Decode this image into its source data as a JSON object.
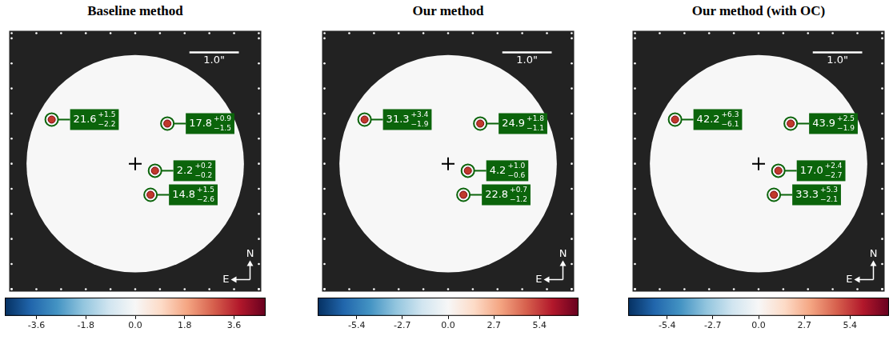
{
  "chart_data": [
    {
      "type": "image",
      "title": "Baseline method",
      "xlim": [
        -2.55,
        2.55
      ],
      "ylim": [
        -2.55,
        2.65
      ],
      "xticks": [
        -2.5,
        -2.0,
        -1.5,
        -1.0,
        -0.5,
        0,
        0.5,
        1.0,
        1.5,
        2.0,
        2.5
      ],
      "yticks": [
        -2.5,
        -2.0,
        -1.5,
        -1.0,
        -0.5,
        0,
        0.5,
        1.0,
        1.5,
        2.0,
        2.5
      ],
      "tick_labels": false,
      "mask_radius": 2.2,
      "star": {
        "x": 0,
        "y": 0
      },
      "scale_bar": {
        "length": 1.0,
        "label": "1.0\""
      },
      "compass": {
        "north": "N",
        "east": "E"
      },
      "sources": [
        {
          "x": -1.69,
          "y": 0.88,
          "value": 21.6,
          "error_plus": 1.5,
          "error_minus": 2.2,
          "value_labels": [
            "21.6",
            "+1.5",
            "−2.2"
          ]
        },
        {
          "x": 0.65,
          "y": 0.8,
          "value": 17.8,
          "error_plus": 0.9,
          "error_minus": 1.5,
          "value_labels": [
            "17.8",
            "+0.9",
            "−1.5"
          ]
        },
        {
          "x": 0.4,
          "y": -0.14,
          "value": 2.2,
          "error_plus": 0.2,
          "error_minus": 0.2,
          "value_labels": [
            "2.2",
            "+0.2",
            "−0.2"
          ]
        },
        {
          "x": 0.31,
          "y": -0.62,
          "value": 14.8,
          "error_plus": 1.5,
          "error_minus": 2.6,
          "value_labels": [
            "14.8",
            "+1.5",
            "−2.6"
          ]
        }
      ],
      "colorbar": {
        "range": [
          -4.75,
          4.75
        ],
        "ticks": [
          -3.6,
          -1.8,
          {
            "value": 0,
            "label": "0.0"
          },
          1.8,
          3.6
        ]
      }
    },
    {
      "type": "image",
      "title": "Our method",
      "xlim": [
        -2.55,
        2.55
      ],
      "ylim": [
        -2.55,
        2.65
      ],
      "xticks": [
        -2.5,
        -2.0,
        -1.5,
        -1.0,
        -0.5,
        0,
        0.5,
        1.0,
        1.5,
        2.0,
        2.5
      ],
      "yticks": [
        -2.5,
        -2.0,
        -1.5,
        -1.0,
        -0.5,
        0,
        0.5,
        1.0,
        1.5,
        2.0,
        2.5
      ],
      "tick_labels": false,
      "mask_radius": 2.2,
      "star": {
        "x": 0,
        "y": 0
      },
      "scale_bar": {
        "length": 1.0,
        "label": "1.0\""
      },
      "compass": {
        "north": "N",
        "east": "E"
      },
      "sources": [
        {
          "x": -1.69,
          "y": 0.88,
          "value": 31.3,
          "error_plus": 3.4,
          "error_minus": 1.9,
          "value_labels": [
            "31.3",
            "+3.4",
            "−1.9"
          ]
        },
        {
          "x": 0.65,
          "y": 0.8,
          "value": 24.9,
          "error_plus": 1.8,
          "error_minus": 1.1,
          "value_labels": [
            "24.9",
            "+1.8",
            "−1.1"
          ]
        },
        {
          "x": 0.4,
          "y": -0.14,
          "value": 4.2,
          "error_plus": 1.0,
          "error_minus": 0.6,
          "value_labels": [
            "4.2",
            "+1.0",
            "−0.6"
          ]
        },
        {
          "x": 0.31,
          "y": -0.62,
          "value": 22.8,
          "error_plus": 0.7,
          "error_minus": 1.2,
          "value_labels": [
            "22.8",
            "+0.7",
            "−1.2"
          ]
        }
      ],
      "colorbar": {
        "range": [
          -7.7,
          7.7
        ],
        "ticks": [
          -5.4,
          -2.7,
          {
            "value": 0,
            "label": "0.0"
          },
          2.7,
          5.4
        ]
      }
    },
    {
      "type": "image",
      "title": "Our method (with OC)",
      "xlim": [
        -2.55,
        2.55
      ],
      "ylim": [
        -2.55,
        2.65
      ],
      "xticks": [
        -2.5,
        -2.0,
        -1.5,
        -1.0,
        -0.5,
        0,
        0.5,
        1.0,
        1.5,
        2.0,
        2.5
      ],
      "yticks": [
        -2.5,
        -2.0,
        -1.5,
        -1.0,
        -0.5,
        0,
        0.5,
        1.0,
        1.5,
        2.0,
        2.5
      ],
      "tick_labels": false,
      "mask_radius": 2.2,
      "star": {
        "x": 0,
        "y": 0
      },
      "scale_bar": {
        "length": 1.0,
        "label": "1.0\""
      },
      "compass": {
        "north": "N",
        "east": "E"
      },
      "sources": [
        {
          "x": -1.69,
          "y": 0.88,
          "value": 42.2,
          "error_plus": 6.3,
          "error_minus": 6.1,
          "value_labels": [
            "42.2",
            "+6.3",
            "−6.1"
          ]
        },
        {
          "x": 0.65,
          "y": 0.8,
          "value": 43.9,
          "error_plus": 2.5,
          "error_minus": 1.9,
          "value_labels": [
            "43.9",
            "+2.5",
            "−1.9"
          ]
        },
        {
          "x": 0.4,
          "y": -0.14,
          "value": 17.0,
          "error_plus": 2.4,
          "error_minus": 2.7,
          "value_labels": [
            "17.0",
            "+2.4",
            "−2.7"
          ]
        },
        {
          "x": 0.31,
          "y": -0.62,
          "value": 33.3,
          "error_plus": 5.3,
          "error_minus": 2.1,
          "value_labels": [
            "33.3",
            "+5.3",
            "−2.1"
          ]
        }
      ],
      "colorbar": {
        "range": [
          -7.7,
          7.7
        ],
        "ticks": [
          -5.4,
          -2.7,
          {
            "value": 0,
            "label": "0.0"
          },
          2.7,
          5.4
        ]
      }
    }
  ]
}
